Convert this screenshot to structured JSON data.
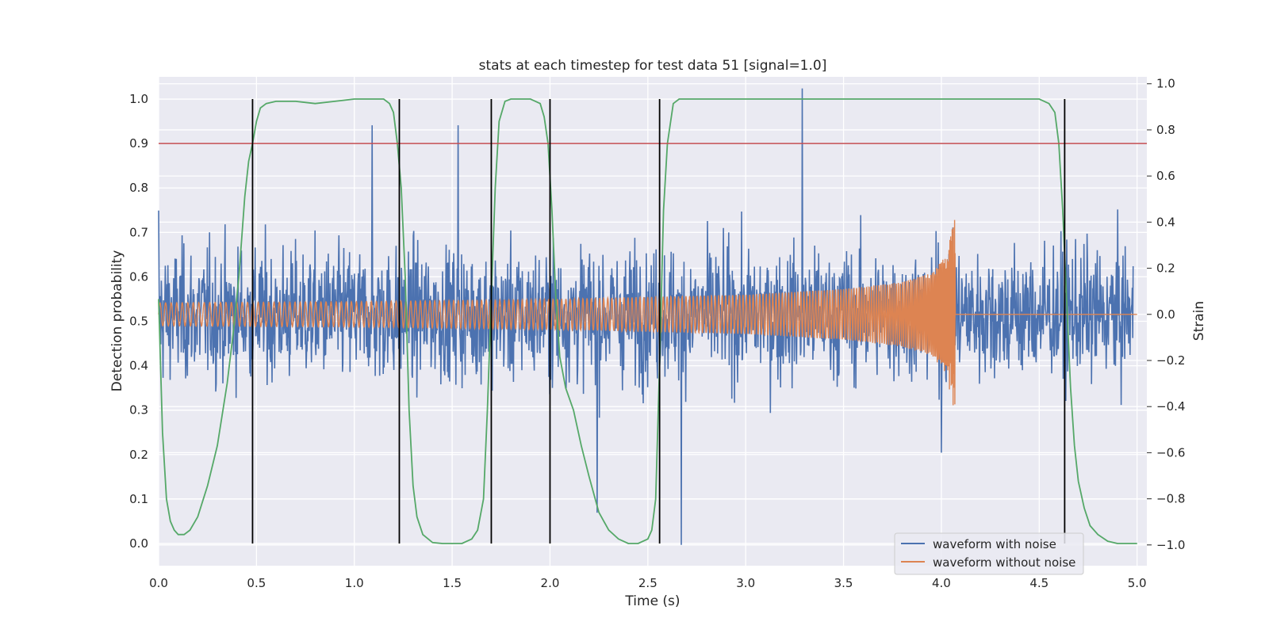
{
  "chart_data": {
    "type": "line",
    "title": "stats at each timestep for test data 51 [signal=1.0]",
    "xlabel": "Time (s)",
    "ylabel_left": "Detection probability",
    "ylabel_right": "Strain",
    "xlim": [
      0.0,
      5.05
    ],
    "ylim_left": [
      -0.05,
      1.05
    ],
    "ylim_right": [
      -1.09,
      1.03
    ],
    "x_ticks": [
      "0.0",
      "0.5",
      "1.0",
      "1.5",
      "2.0",
      "2.5",
      "3.0",
      "3.5",
      "4.0",
      "4.5",
      "5.0"
    ],
    "y_ticks_left": [
      "0.0",
      "0.1",
      "0.2",
      "0.3",
      "0.4",
      "0.5",
      "0.6",
      "0.7",
      "0.8",
      "0.9",
      "1.0"
    ],
    "y_ticks_right": [
      "−1.0",
      "−0.8",
      "−0.6",
      "−0.4",
      "−0.2",
      "0.0",
      "0.2",
      "0.4",
      "0.6",
      "0.8",
      "1.0"
    ],
    "threshold": {
      "value": 0.9,
      "color": "#c44e52"
    },
    "event_markers": [
      0.48,
      1.23,
      1.7,
      2.0,
      2.56,
      4.63
    ],
    "series": [
      {
        "name": "waveform with noise",
        "axis": "right",
        "color": "#4c72b0",
        "description_points": [
          [
            0.0,
            0.45
          ],
          [
            1.09,
            0.82
          ],
          [
            1.53,
            0.82
          ],
          [
            2.24,
            -0.86
          ],
          [
            2.67,
            -1.0
          ],
          [
            3.29,
            0.98
          ],
          [
            4.0,
            -0.6
          ]
        ]
      },
      {
        "name": "waveform without noise",
        "axis": "right",
        "color": "#dd8452",
        "chirp_end": 4.07,
        "envelope": {
          "x": [
            0.0,
            1.0,
            2.0,
            3.0,
            3.5,
            3.8,
            3.95,
            4.02,
            4.06,
            4.07
          ],
          "amp": [
            0.05,
            0.055,
            0.065,
            0.085,
            0.11,
            0.14,
            0.18,
            0.25,
            0.4,
            0.42
          ]
        }
      },
      {
        "name": "",
        "axis": "left",
        "color": "#55a868",
        "x": [
          0.0,
          0.02,
          0.04,
          0.06,
          0.08,
          0.1,
          0.13,
          0.16,
          0.2,
          0.25,
          0.3,
          0.35,
          0.38,
          0.41,
          0.44,
          0.46,
          0.48,
          0.5,
          0.52,
          0.55,
          0.6,
          0.7,
          0.8,
          0.9,
          1.0,
          1.1,
          1.15,
          1.18,
          1.2,
          1.22,
          1.24,
          1.26,
          1.28,
          1.3,
          1.32,
          1.35,
          1.4,
          1.45,
          1.5,
          1.55,
          1.6,
          1.63,
          1.66,
          1.68,
          1.7,
          1.72,
          1.74,
          1.77,
          1.8,
          1.9,
          1.95,
          1.97,
          1.99,
          2.01,
          2.03,
          2.05,
          2.08,
          2.12,
          2.16,
          2.2,
          2.25,
          2.3,
          2.35,
          2.4,
          2.45,
          2.5,
          2.52,
          2.54,
          2.56,
          2.58,
          2.6,
          2.63,
          2.66,
          2.7,
          3.0,
          3.5,
          4.0,
          4.5,
          4.55,
          4.58,
          4.6,
          4.62,
          4.64,
          4.66,
          4.68,
          4.7,
          4.73,
          4.76,
          4.8,
          4.85,
          4.9,
          4.95,
          5.0
        ],
        "y": [
          0.55,
          0.25,
          0.1,
          0.05,
          0.03,
          0.02,
          0.02,
          0.03,
          0.06,
          0.13,
          0.22,
          0.36,
          0.47,
          0.6,
          0.78,
          0.86,
          0.9,
          0.95,
          0.98,
          0.99,
          0.995,
          0.995,
          0.99,
          0.995,
          1.0,
          1.0,
          1.0,
          0.99,
          0.97,
          0.9,
          0.8,
          0.6,
          0.3,
          0.13,
          0.06,
          0.02,
          0.002,
          0.0,
          0.0,
          0.0,
          0.01,
          0.03,
          0.1,
          0.3,
          0.55,
          0.8,
          0.95,
          0.995,
          1.0,
          1.0,
          0.99,
          0.96,
          0.9,
          0.75,
          0.55,
          0.42,
          0.35,
          0.3,
          0.22,
          0.15,
          0.07,
          0.03,
          0.01,
          0.0,
          0.0,
          0.01,
          0.03,
          0.1,
          0.4,
          0.75,
          0.9,
          0.99,
          1.0,
          1.0,
          1.0,
          1.0,
          1.0,
          1.0,
          0.99,
          0.97,
          0.9,
          0.75,
          0.55,
          0.35,
          0.22,
          0.14,
          0.08,
          0.04,
          0.02,
          0.005,
          0.0,
          0.0,
          0.0
        ]
      }
    ],
    "legend": {
      "placement": "lower-right"
    },
    "grid": true
  }
}
